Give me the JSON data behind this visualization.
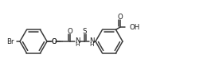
{
  "bg_color": "#ffffff",
  "line_color": "#3a3a3a",
  "line_width": 1.1,
  "font_size": 6.2,
  "font_color": "#1a1a1a",
  "figsize": [
    2.65,
    1.03
  ],
  "dpi": 100,
  "xlim": [
    0,
    265
  ],
  "ylim": [
    0,
    103
  ]
}
